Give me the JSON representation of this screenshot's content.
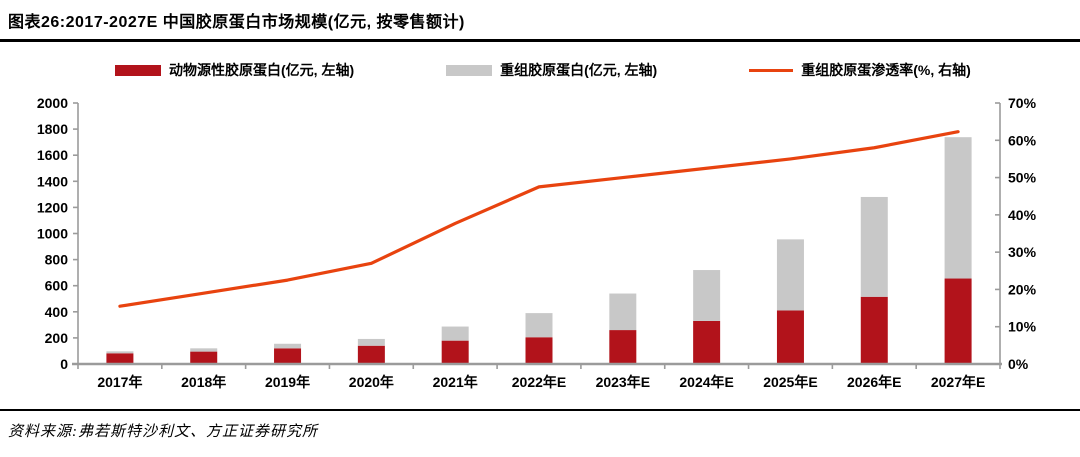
{
  "header": {
    "title": "图表26:2017-2027E 中国胶原蛋白市场规模(亿元, 按零售额计)"
  },
  "legend": [
    {
      "label": "动物源性胶原蛋白(亿元, 左轴)",
      "type": "bar",
      "color": "#b2131b"
    },
    {
      "label": "重组胶原蛋白(亿元, 左轴)",
      "type": "bar",
      "color": "#c8c8c8"
    },
    {
      "label": "重组胶原蛋渗透率(%, 右轴)",
      "type": "line",
      "color": "#e8430f"
    }
  ],
  "chart_data": {
    "type": "bar",
    "subtype": "stacked-bar-with-line",
    "categories": [
      "2017年",
      "2018年",
      "2019年",
      "2020年",
      "2021年",
      "2022年E",
      "2023年E",
      "2024年E",
      "2025年E",
      "2026年E",
      "2027年E"
    ],
    "series": [
      {
        "name": "动物源性胶原蛋白(亿元, 左轴)",
        "type": "bar",
        "axis": "left",
        "color": "#b2131b",
        "values": [
          82,
          95,
          120,
          140,
          179,
          205,
          260,
          330,
          410,
          515,
          655
        ]
      },
      {
        "name": "重组胶原蛋白(亿元, 左轴)",
        "type": "bar",
        "axis": "left",
        "color": "#c8c8c8",
        "values": [
          15,
          25,
          35,
          52,
          108,
          185,
          280,
          390,
          545,
          765,
          1083
        ]
      },
      {
        "name": "重组胶原蛋渗透率(%, 右轴)",
        "type": "line",
        "axis": "right",
        "color": "#e8430f",
        "values": [
          15.5,
          19.0,
          22.5,
          27.0,
          37.7,
          47.5,
          50.0,
          52.5,
          55.0,
          58.0,
          62.3
        ]
      }
    ],
    "left_axis": {
      "min": 0,
      "max": 2000,
      "step": 200,
      "suffix": ""
    },
    "right_axis": {
      "min": 0,
      "max": 70,
      "step": 10,
      "suffix": "%"
    },
    "grid": false,
    "legend_position": "top",
    "axis_color": "#9b9b9b",
    "tick_label_color": "#000000"
  },
  "footer": {
    "source": "资料来源:弗若斯特沙利文、方正证券研究所"
  }
}
